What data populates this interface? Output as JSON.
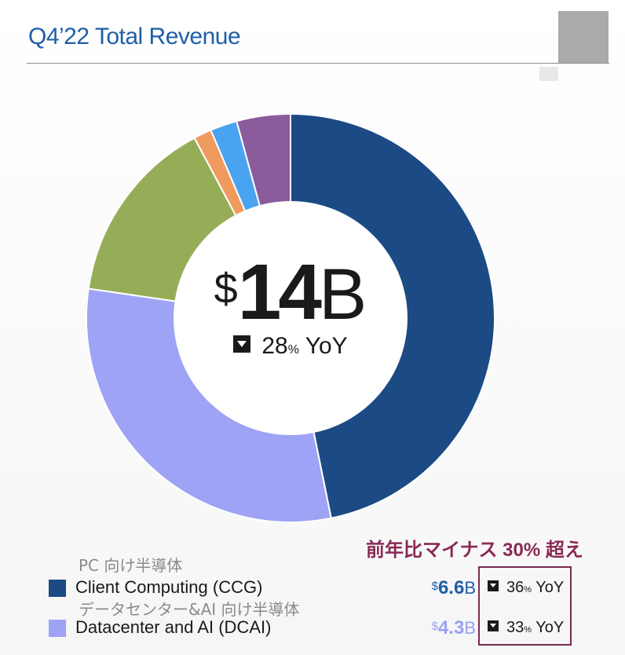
{
  "title": "Q4’22 Total Revenue",
  "colors": {
    "title": "#1f5ea8",
    "annotation": "#8a2a55",
    "highlight_box": "#7a2a50"
  },
  "center": {
    "currency": "$",
    "value": "14",
    "unit": "B",
    "yoy_value": "28",
    "yoy_pct": "%",
    "yoy_label": "YoY",
    "yoy_direction": "down"
  },
  "annotation": "前年比マイナス 30% 超え",
  "legend": [
    {
      "jp_label": "PC 向け半導体",
      "label": "Client Computing (CCG)",
      "currency": "$",
      "value": "6.6",
      "unit": "B",
      "yoy_value": "36",
      "yoy_pct": "%",
      "yoy_label": "YoY",
      "color": "#1c4a84"
    },
    {
      "jp_label": "データセンター&AI 向け半導体",
      "label": "Datacenter and AI (DCAI)",
      "currency": "$",
      "value": "4.3",
      "unit": "B",
      "yoy_value": "33",
      "yoy_pct": "%",
      "yoy_label": "YoY",
      "color": "#9ea3f5"
    }
  ],
  "chart_data": {
    "type": "pie",
    "style": "donut",
    "title": "Q4’22 Total Revenue",
    "total": 14,
    "unit": "B",
    "series": [
      {
        "name": "Client Computing (CCG)",
        "value": 6.6,
        "color": "#1c4a84"
      },
      {
        "name": "Datacenter and AI (DCAI)",
        "value": 4.3,
        "color": "#9ea3f5"
      },
      {
        "value": 2.1,
        "color": "#96ad57"
      },
      {
        "value": 0.2,
        "color": "#ef9a5f"
      },
      {
        "value": 0.3,
        "color": "#4aa3f0"
      },
      {
        "value": 0.6,
        "color": "#8a5c9c"
      }
    ]
  }
}
